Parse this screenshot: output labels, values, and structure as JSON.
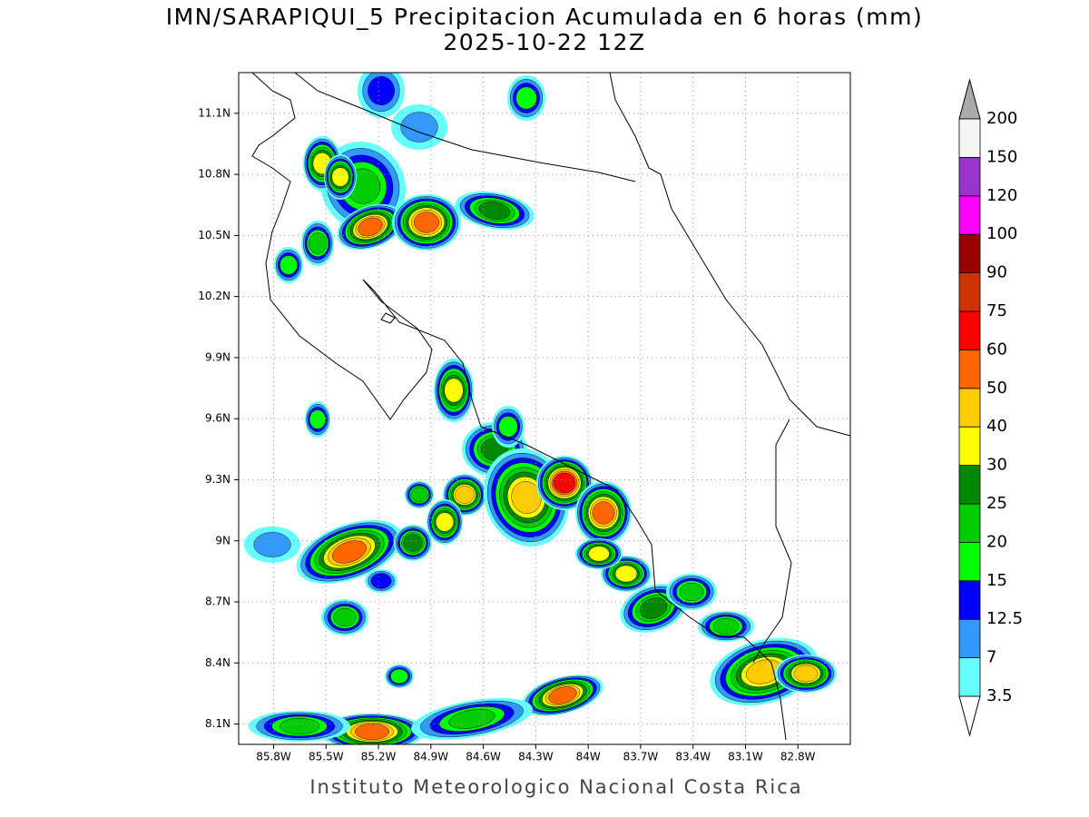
{
  "title": "IMN/SARAPIQUI_5 Precipitacion Acumulada en 6 horas (mm)",
  "subtitle": "2025-10-22 12Z",
  "lat_ticks": [
    {
      "value": 11.1,
      "label": "11.1N"
    },
    {
      "value": 10.8,
      "label": "10.8N"
    },
    {
      "value": 10.5,
      "label": "10.5N"
    },
    {
      "value": 10.2,
      "label": "10.2N"
    },
    {
      "value": 9.9,
      "label": "9.9N"
    },
    {
      "value": 9.6,
      "label": "9.6N"
    },
    {
      "value": 9.3,
      "label": "9.3N"
    },
    {
      "value": 9,
      "label": "9N"
    },
    {
      "value": 8.7,
      "label": "8.7N"
    },
    {
      "value": 8.4,
      "label": "8.4N"
    },
    {
      "value": 8.1,
      "label": "8.1N"
    }
  ],
  "lon_ticks": [
    {
      "value": -85.8,
      "label": "85.8W"
    },
    {
      "value": -85.5,
      "label": "85.5W"
    },
    {
      "value": -85.2,
      "label": "85.2W"
    },
    {
      "value": -84.9,
      "label": "84.9W"
    },
    {
      "value": -84.6,
      "label": "84.6W"
    },
    {
      "value": -84.3,
      "label": "84.3W"
    },
    {
      "value": -84,
      "label": "84W"
    },
    {
      "value": -83.7,
      "label": "83.7W"
    },
    {
      "value": -83.4,
      "label": "83.4W"
    },
    {
      "value": -83.1,
      "label": "83.1W"
    },
    {
      "value": -82.8,
      "label": "82.8W"
    }
  ],
  "colorbar": {
    "levels": [
      3.5,
      7,
      12.5,
      15,
      20,
      25,
      30,
      40,
      50,
      60,
      75,
      90,
      100,
      120,
      150,
      200
    ],
    "colors": [
      "#66ffff",
      "#3399ff",
      "#0000ff",
      "#00ff00",
      "#00cc00",
      "#008800",
      "#ffff00",
      "#ffcc00",
      "#ff6600",
      "#ff0000",
      "#cc3300",
      "#990000",
      "#ff00ff",
      "#9933cc",
      "#f5f5f5"
    ]
  },
  "footer": "Instituto Meteorologico Nacional Costa Rica"
}
